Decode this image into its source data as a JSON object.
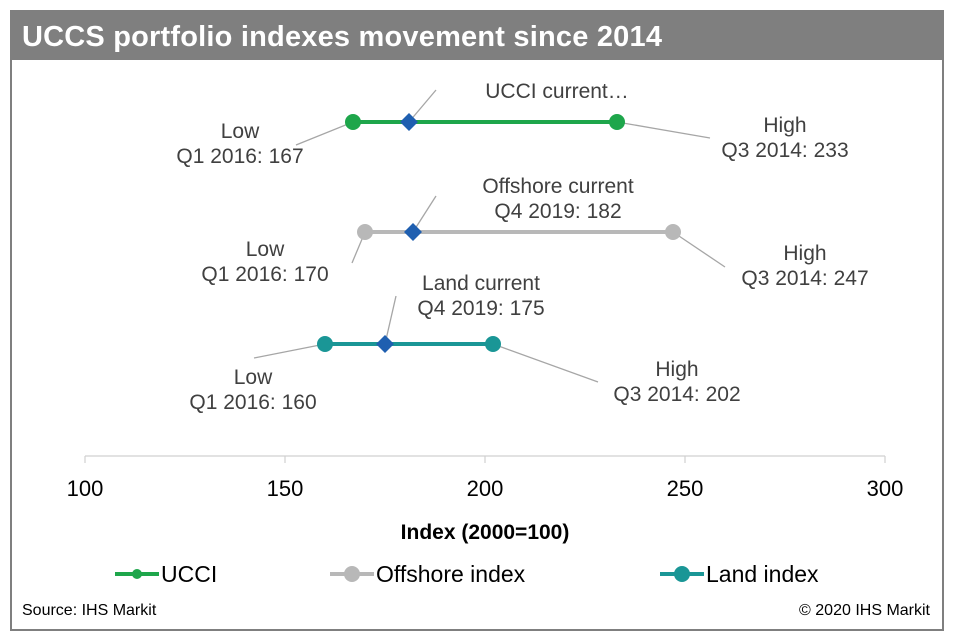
{
  "title": "UCCS portfolio indexes movement since 2014",
  "source": "Source: IHS Markit",
  "copyright": "© 2020 IHS Markit",
  "chart_data": {
    "type": "range-dot",
    "xlabel": "Index (2000=100)",
    "xlim": [
      100,
      300
    ],
    "xticks": [
      100,
      150,
      200,
      250,
      300
    ],
    "grid": false,
    "legend_position": "bottom",
    "current_marker_color": "#1f5fb0",
    "series": [
      {
        "name": "UCCI",
        "color": "#1ea64b",
        "low": 167,
        "high": 233,
        "current": 181,
        "low_label": [
          "Low",
          "Q1 2016: 167"
        ],
        "high_label": [
          "High",
          "Q3 2014: 233"
        ],
        "current_label": [
          "UCCI current…"
        ]
      },
      {
        "name": "Offshore index",
        "color": "#b8b8b8",
        "low": 170,
        "high": 247,
        "current": 182,
        "low_label": [
          "Low",
          "Q1 2016: 170"
        ],
        "high_label": [
          "High",
          "Q3 2014: 247"
        ],
        "current_label": [
          "Offshore current",
          "Q4 2019: 182"
        ]
      },
      {
        "name": "Land index",
        "color": "#1a9696",
        "low": 160,
        "high": 202,
        "current": 175,
        "low_label": [
          "Low",
          "Q1 2016: 160"
        ],
        "high_label": [
          "High",
          "Q3 2014: 202"
        ],
        "current_label": [
          "Land current",
          "Q4 2019: 175"
        ]
      }
    ]
  }
}
